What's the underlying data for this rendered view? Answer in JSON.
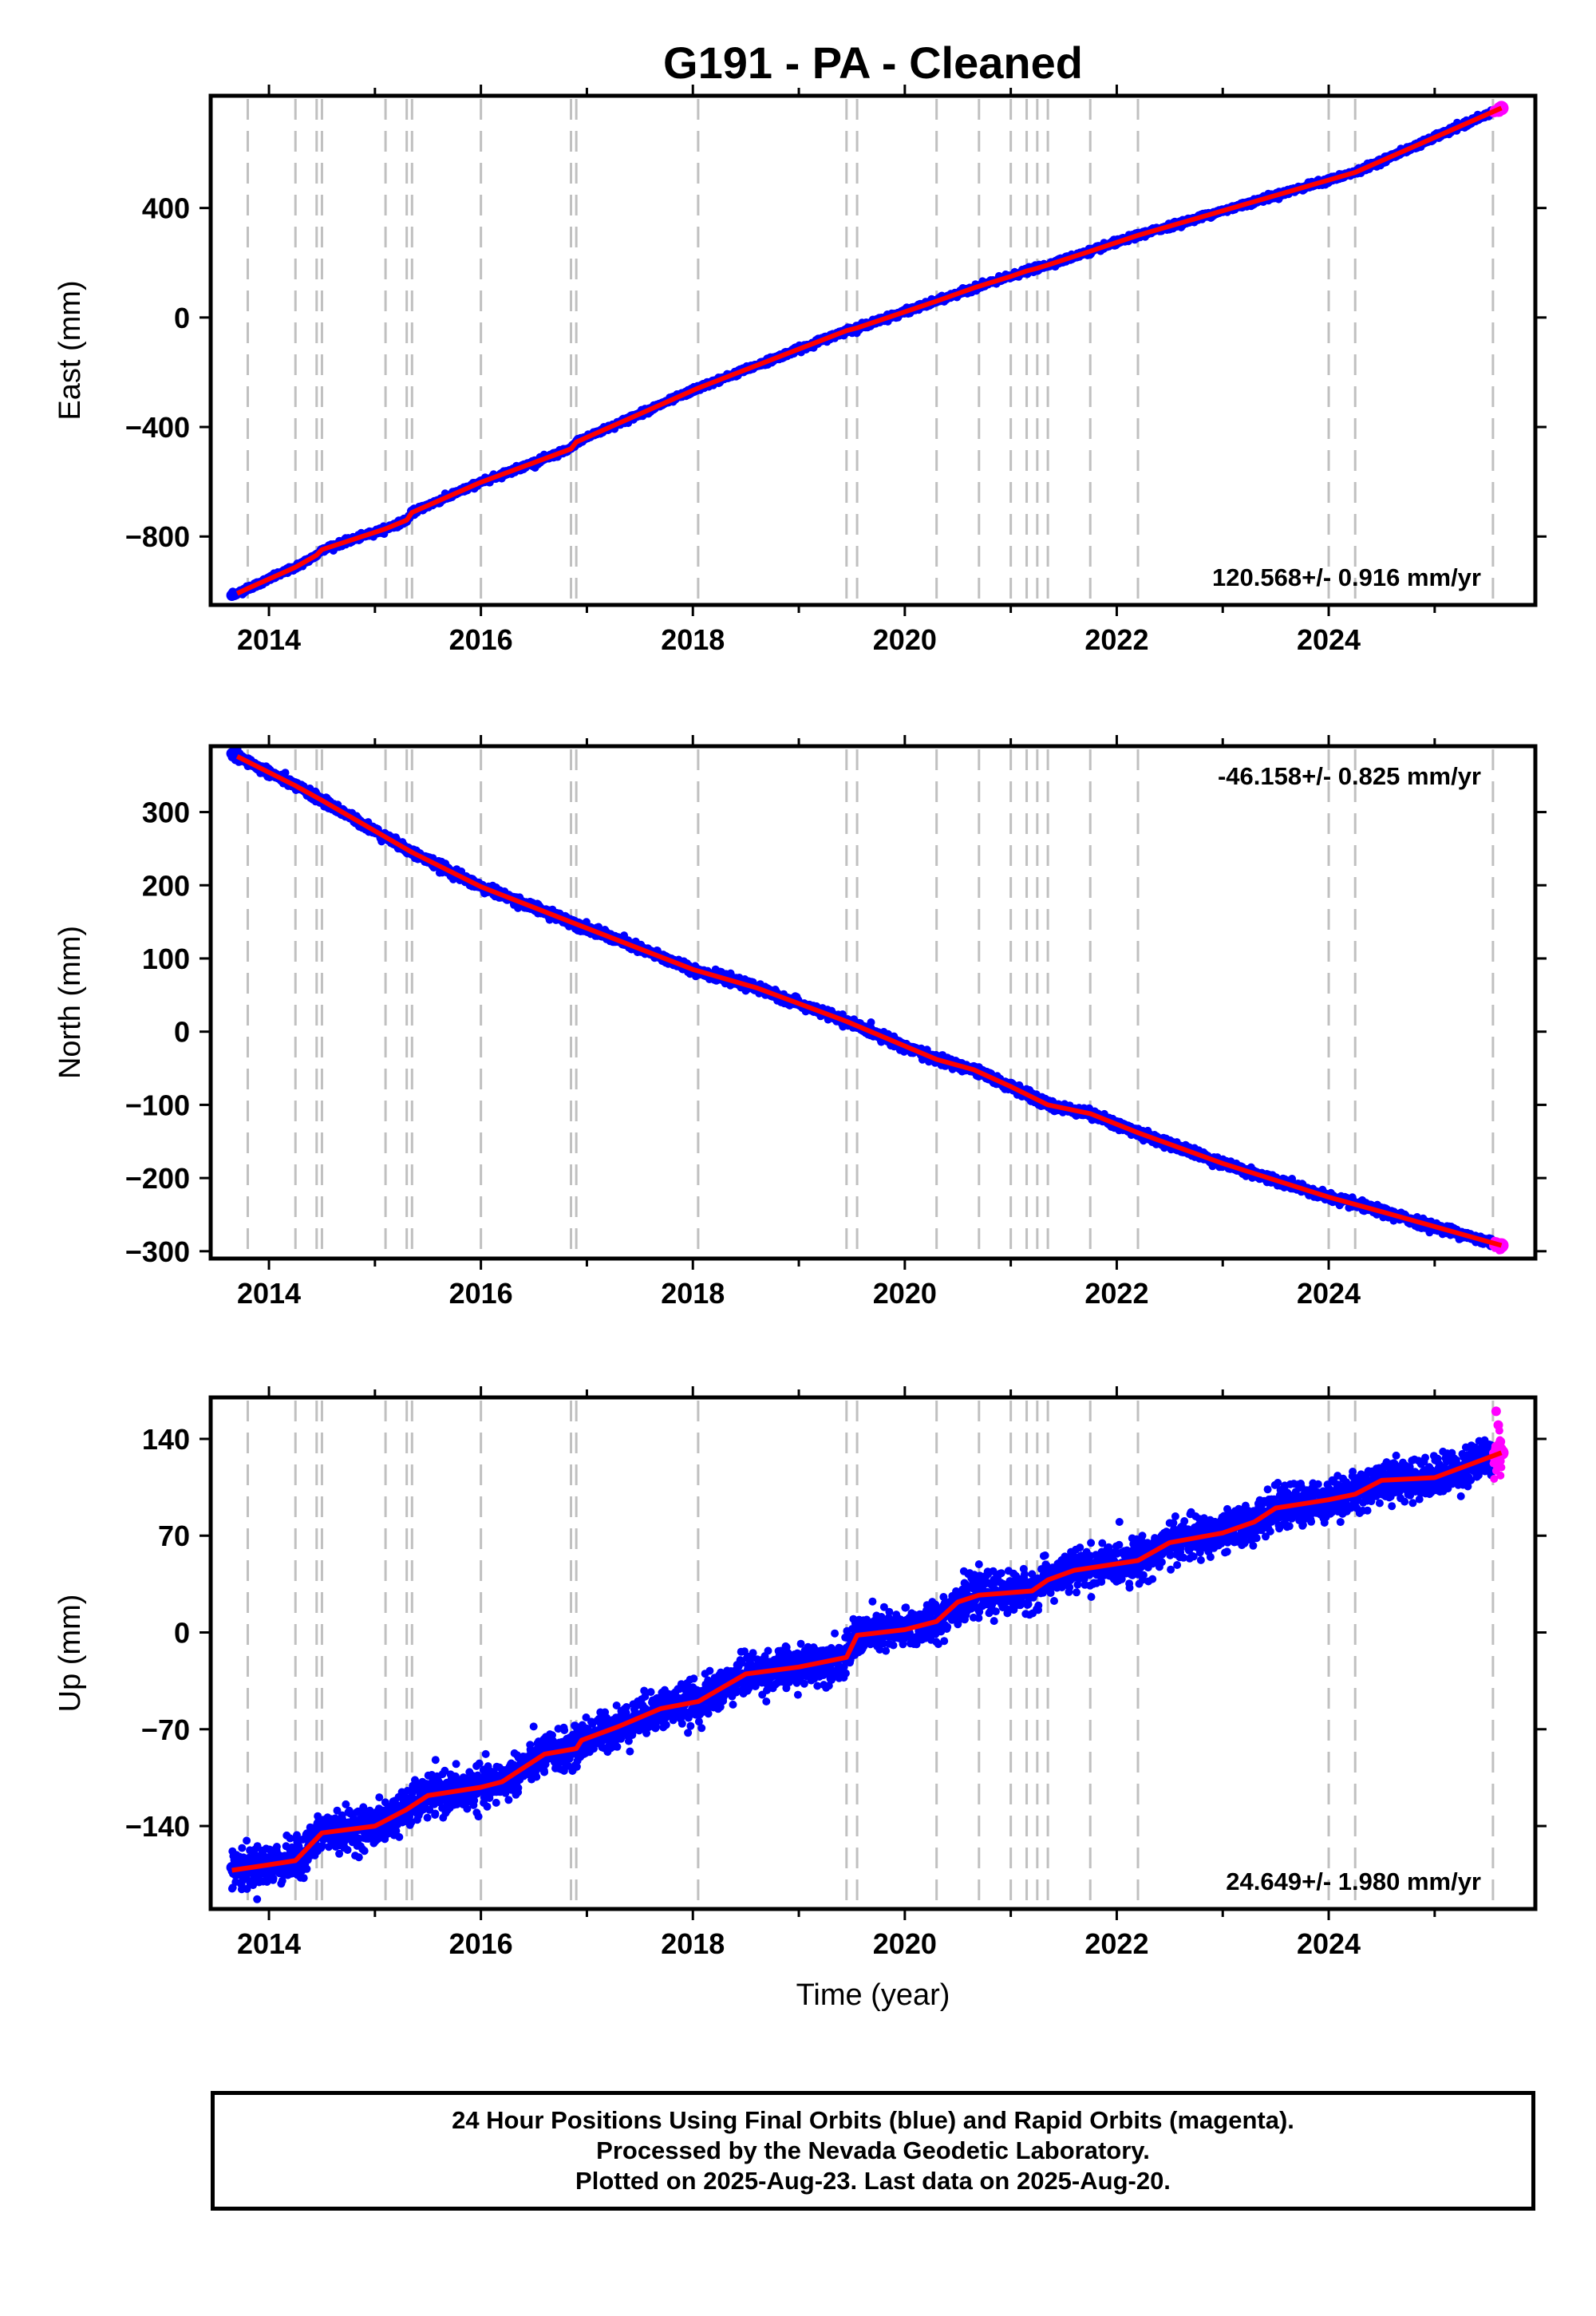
{
  "title": "G191  - PA - Cleaned",
  "colors": {
    "final_orbits": "#0000ff",
    "rapid_orbits": "#ff00ff",
    "model": "#ff0000",
    "event_lines": "#c0c0c0",
    "frame": "#000000"
  },
  "chart_data": [
    {
      "type": "scatter",
      "panel": "east",
      "ylabel": "East (mm)",
      "xlabel": "",
      "xlim": [
        2013.45,
        2025.95
      ],
      "ylim": [
        -1050,
        810
      ],
      "yticks": [
        400,
        0,
        -400,
        -800
      ],
      "yticklabels": [
        "400",
        "0",
        "-400",
        "-800"
      ],
      "xticks": [
        2014,
        2016,
        2018,
        2020,
        2022,
        2024
      ],
      "xticklabels": [
        "2014",
        "2016",
        "2018",
        "2020",
        "2022",
        "2024"
      ],
      "grid": false,
      "rate_text": "120.568+/- 0.916 mm/yr",
      "rate_position": "bottom-right",
      "start": [
        2013.65,
        -1015
      ],
      "end": [
        2025.63,
        765
      ],
      "noise_mm": 5,
      "series": [
        {
          "name": "Final Orbits",
          "color": "#0000ff",
          "x_range": [
            2013.65,
            2025.55
          ]
        },
        {
          "name": "Rapid Orbits",
          "color": "#ff00ff",
          "x_range": [
            2025.55,
            2025.63
          ]
        }
      ],
      "model_steps": [
        [
          2013.7,
          -1008
        ],
        [
          2013.8,
          -990
        ],
        [
          2014.25,
          -912
        ],
        [
          2014.45,
          -868
        ],
        [
          2014.5,
          -848
        ],
        [
          2015.1,
          -772
        ],
        [
          2015.3,
          -740
        ],
        [
          2015.35,
          -712
        ],
        [
          2016.0,
          -602
        ],
        [
          2016.85,
          -480
        ],
        [
          2016.9,
          -455
        ],
        [
          2018.05,
          -258
        ],
        [
          2019.45,
          -48
        ],
        [
          2019.55,
          -38
        ],
        [
          2020.3,
          60
        ],
        [
          2020.65,
          108
        ],
        [
          2021.0,
          150
        ],
        [
          2021.15,
          170
        ],
        [
          2021.25,
          180
        ],
        [
          2021.35,
          192
        ],
        [
          2021.75,
          242
        ],
        [
          2022.2,
          300
        ],
        [
          2024.0,
          502
        ],
        [
          2024.25,
          530
        ],
        [
          2025.63,
          765
        ]
      ]
    },
    {
      "type": "scatter",
      "panel": "north",
      "ylabel": "North (mm)",
      "xlabel": "",
      "xlim": [
        2013.45,
        2025.95
      ],
      "ylim": [
        -310,
        390
      ],
      "yticks": [
        300,
        200,
        100,
        0,
        -100,
        -200,
        -300
      ],
      "yticklabels": [
        "300",
        "200",
        "100",
        "0",
        "-100",
        "-200",
        "-300"
      ],
      "xticks": [
        2014,
        2016,
        2018,
        2020,
        2022,
        2024
      ],
      "xticklabels": [
        "2014",
        "2016",
        "2018",
        "2020",
        "2022",
        "2024"
      ],
      "grid": false,
      "rate_text": "-46.158+/- 0.825 mm/yr",
      "rate_position": "top-right",
      "start": [
        2013.65,
        380
      ],
      "end": [
        2025.63,
        -292
      ],
      "noise_mm": 3,
      "series": [
        {
          "name": "Final Orbits",
          "color": "#0000ff",
          "x_range": [
            2013.65,
            2025.55
          ]
        },
        {
          "name": "Rapid Orbits",
          "color": "#ff00ff",
          "x_range": [
            2025.55,
            2025.63
          ]
        }
      ],
      "model_steps": [
        [
          2013.7,
          376
        ],
        [
          2014.25,
          336
        ],
        [
          2014.5,
          316
        ],
        [
          2015.35,
          245
        ],
        [
          2016.0,
          198
        ],
        [
          2016.9,
          147
        ],
        [
          2018.0,
          85
        ],
        [
          2018.6,
          60
        ],
        [
          2019.45,
          14
        ],
        [
          2020.3,
          -38
        ],
        [
          2020.65,
          -52
        ],
        [
          2021.0,
          -75
        ],
        [
          2021.35,
          -100
        ],
        [
          2021.75,
          -112
        ],
        [
          2022.2,
          -138
        ],
        [
          2023.0,
          -180
        ],
        [
          2024.0,
          -226
        ],
        [
          2024.5,
          -246
        ],
        [
          2025.63,
          -292
        ]
      ]
    },
    {
      "type": "scatter",
      "panel": "up",
      "ylabel": "Up (mm)",
      "xlabel": "Time (year)",
      "xlim": [
        2013.45,
        2025.95
      ],
      "ylim": [
        -200,
        170
      ],
      "yticks": [
        140,
        70,
        0,
        -70,
        -140
      ],
      "yticklabels": [
        "140",
        "70",
        "0",
        "-70",
        "-140"
      ],
      "xticks": [
        2014,
        2016,
        2018,
        2020,
        2022,
        2024
      ],
      "xticklabels": [
        "2014",
        "2016",
        "2018",
        "2020",
        "2022",
        "2024"
      ],
      "grid": false,
      "rate_text": "24.649+/- 1.980 mm/yr",
      "rate_position": "bottom-right",
      "start": [
        2013.65,
        -170
      ],
      "end": [
        2025.63,
        130
      ],
      "noise_mm": 7,
      "series": [
        {
          "name": "Final Orbits",
          "color": "#0000ff",
          "x_range": [
            2013.65,
            2025.55
          ]
        },
        {
          "name": "Rapid Orbits",
          "color": "#ff00ff",
          "x_range": [
            2025.55,
            2025.63
          ]
        }
      ],
      "model_steps": [
        [
          2013.65,
          -172
        ],
        [
          2014.0,
          -168
        ],
        [
          2014.25,
          -165
        ],
        [
          2014.5,
          -145
        ],
        [
          2015.0,
          -140
        ],
        [
          2015.3,
          -128
        ],
        [
          2015.5,
          -118
        ],
        [
          2016.0,
          -112
        ],
        [
          2016.2,
          -108
        ],
        [
          2016.6,
          -88
        ],
        [
          2016.9,
          -84
        ],
        [
          2016.95,
          -78
        ],
        [
          2017.3,
          -68
        ],
        [
          2017.7,
          -55
        ],
        [
          2018.05,
          -50
        ],
        [
          2018.5,
          -30
        ],
        [
          2019.0,
          -25
        ],
        [
          2019.45,
          -18
        ],
        [
          2019.55,
          -2
        ],
        [
          2020.0,
          2
        ],
        [
          2020.3,
          8
        ],
        [
          2020.5,
          22
        ],
        [
          2020.7,
          27
        ],
        [
          2021.2,
          30
        ],
        [
          2021.35,
          38
        ],
        [
          2021.6,
          45
        ],
        [
          2022.2,
          52
        ],
        [
          2022.5,
          65
        ],
        [
          2023.0,
          72
        ],
        [
          2023.3,
          80
        ],
        [
          2023.5,
          90
        ],
        [
          2024.0,
          96
        ],
        [
          2024.25,
          100
        ],
        [
          2024.5,
          110
        ],
        [
          2025.0,
          112
        ],
        [
          2025.63,
          130
        ]
      ],
      "rapid_outliers": [
        [
          2025.58,
          160
        ],
        [
          2025.6,
          150
        ],
        [
          2025.62,
          138
        ],
        [
          2025.63,
          133
        ]
      ]
    }
  ],
  "event_lines_x": [
    2013.8,
    2014.25,
    2014.45,
    2014.5,
    2015.1,
    2015.3,
    2015.35,
    2016.0,
    2016.85,
    2016.9,
    2018.05,
    2019.45,
    2019.55,
    2020.3,
    2020.7,
    2021.0,
    2021.15,
    2021.25,
    2021.35,
    2021.75,
    2022.2,
    2024.0,
    2024.25,
    2025.55
  ],
  "footer": {
    "line1": "24 Hour Positions Using Final Orbits (blue) and Rapid Orbits (magenta).",
    "line2": "Processed by the Nevada Geodetic Laboratory.",
    "line3": "Plotted on 2025-Aug-23. Last data on 2025-Aug-20."
  }
}
